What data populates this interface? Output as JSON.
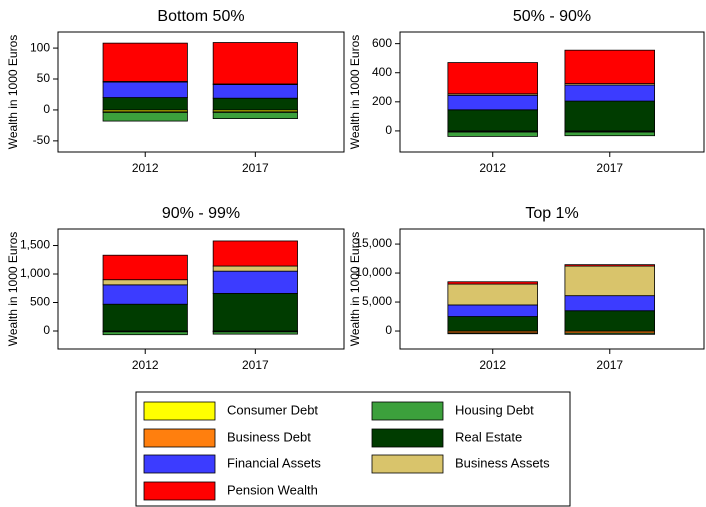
{
  "chart_data": [
    {
      "type": "bar",
      "title": "Bottom 50%",
      "y_label": "Wealth in 1000 Euros",
      "categories": [
        "2012",
        "2017"
      ],
      "ylim": [
        -68,
        126
      ],
      "yticks": [
        -50,
        0,
        50,
        100
      ],
      "series": [
        {
          "values": [
            -3,
            -3
          ]
        },
        {
          "values": [
            -1,
            -1
          ]
        },
        {
          "values": [
            -14,
            -10
          ]
        },
        {
          "values": [
            20,
            19
          ]
        },
        {
          "values": [
            25,
            22
          ]
        },
        {
          "values": [
            1,
            1
          ]
        },
        {
          "values": [
            62,
            67
          ]
        }
      ]
    },
    {
      "type": "bar",
      "title": "50% - 90%",
      "y_label": "Wealth in 1000 Euros",
      "categories": [
        "2012",
        "2017"
      ],
      "ylim": [
        -145,
        680
      ],
      "yticks": [
        0,
        200,
        400,
        600
      ],
      "series": [
        {
          "values": [
            -5,
            -5
          ]
        },
        {
          "values": [
            -3,
            -3
          ]
        },
        {
          "values": [
            -30,
            -25
          ]
        },
        {
          "values": [
            145,
            205
          ]
        },
        {
          "values": [
            100,
            110
          ]
        },
        {
          "values": [
            10,
            10
          ]
        },
        {
          "values": [
            215,
            230
          ]
        }
      ]
    },
    {
      "type": "bar",
      "title": "90% - 99%",
      "y_label": "Wealth in 1000 Euros",
      "categories": [
        "2012",
        "2017"
      ],
      "ylim": [
        -316,
        1790
      ],
      "yticks": [
        0,
        500,
        {
          "value": 1000,
          "label": "1,000"
        },
        {
          "value": 1500,
          "label": "1,500"
        }
      ],
      "series": [
        {
          "values": [
            -5,
            -5
          ]
        },
        {
          "values": [
            -10,
            -10
          ]
        },
        {
          "values": [
            -50,
            -40
          ]
        },
        {
          "values": [
            470,
            660
          ]
        },
        {
          "values": [
            340,
            390
          ]
        },
        {
          "values": [
            90,
            90
          ]
        },
        {
          "values": [
            430,
            440
          ]
        }
      ]
    },
    {
      "type": "bar",
      "title": "Top 1%",
      "y_label": "Wealth in 1000 Euros",
      "categories": [
        "2012",
        "2017"
      ],
      "ylim": [
        -3100,
        17600
      ],
      "yticks": [
        0,
        {
          "value": 5000,
          "label": "5,000"
        },
        {
          "value": 10000,
          "label": "10,000"
        },
        {
          "value": 15000,
          "label": "15,000"
        }
      ],
      "series": [
        {
          "values": [
            -20,
            -20
          ]
        },
        {
          "values": [
            -300,
            -350
          ]
        },
        {
          "values": [
            -150,
            -200
          ]
        },
        {
          "values": [
            2500,
            3500
          ]
        },
        {
          "values": [
            2000,
            2600
          ]
        },
        {
          "values": [
            3600,
            5100
          ]
        },
        {
          "values": [
            400,
            250
          ]
        }
      ]
    }
  ],
  "legend": [
    {
      "name": "Consumer Debt",
      "color": "#ffff00"
    },
    {
      "name": "Business Debt",
      "color": "#ff7f0e"
    },
    {
      "name": "Housing Debt",
      "color": "#3ca03c"
    },
    {
      "name": "Real Estate",
      "color": "#003c00"
    },
    {
      "name": "Financial Assets",
      "color": "#3c3cff"
    },
    {
      "name": "Business Assets",
      "color": "#d9c46b"
    },
    {
      "name": "Pension  Wealth",
      "color": "#ff0000"
    }
  ]
}
